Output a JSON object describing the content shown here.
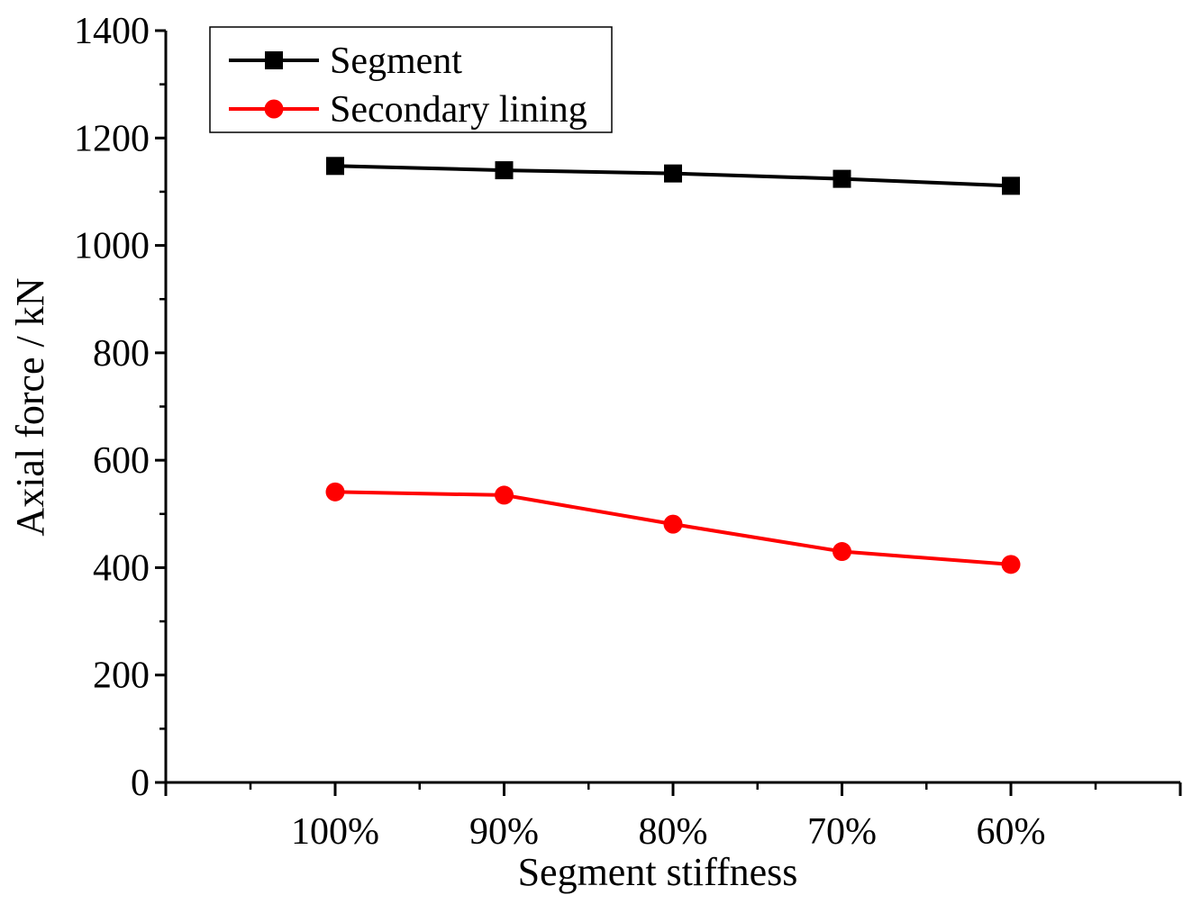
{
  "chart_data": {
    "type": "line",
    "xlabel": "Segment stiffness",
    "ylabel": "Axial force / kN",
    "categories": [
      "100%",
      "90%",
      "80%",
      "70%",
      "60%"
    ],
    "ylim": [
      0,
      1400
    ],
    "yticks": [
      0,
      200,
      400,
      600,
      800,
      1000,
      1200,
      1400
    ],
    "legend_position": "top-left",
    "grid": false,
    "series": [
      {
        "name": "Segment",
        "color": "#000000",
        "marker": "square",
        "values": [
          1148,
          1140,
          1134,
          1124,
          1111
        ]
      },
      {
        "name": "Secondary lining",
        "color": "#ff0000",
        "marker": "circle",
        "values": [
          541,
          535,
          481,
          430,
          406
        ]
      }
    ]
  }
}
